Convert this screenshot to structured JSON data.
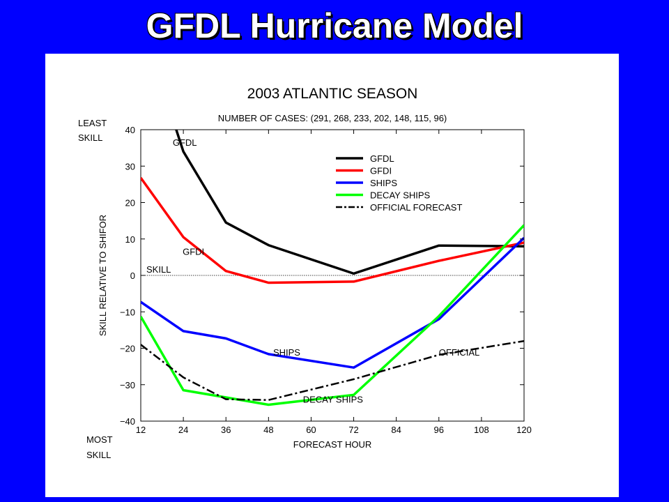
{
  "slide": {
    "title": "GFDL Hurricane Model"
  },
  "chart_data": {
    "type": "line",
    "title": "2003 ATLANTIC SEASON",
    "subtitle": "NUMBER OF CASES: (291, 268, 233, 202, 148, 115, 96)",
    "xlabel": "FORECAST HOUR",
    "ylabel": "SKILL RELATIVE TO SHIFOR",
    "xlim": [
      12,
      120
    ],
    "ylim": [
      -40,
      40
    ],
    "xticks": [
      12,
      24,
      36,
      48,
      60,
      72,
      84,
      96,
      108,
      120
    ],
    "yticks": [
      40,
      30,
      20,
      10,
      0,
      -10,
      -20,
      -30,
      -40
    ],
    "ytick_labels": [
      "40",
      "30",
      "20",
      "10",
      "0",
      "−10",
      "−20",
      "−30",
      "−40"
    ],
    "y_top_label": [
      "LEAST",
      "SKILL"
    ],
    "y_bottom_label": [
      "MOST",
      "SKILL"
    ],
    "reference_line": {
      "y": 0,
      "label": "SKILL"
    },
    "legend_position": "top-right",
    "series": [
      {
        "name": "GFDL",
        "color": "#000000",
        "dash": "solid",
        "x": [
          22,
          24,
          36,
          48,
          72,
          96,
          120
        ],
        "y": [
          40,
          34,
          14.5,
          8.3,
          0.5,
          8.2,
          8
        ]
      },
      {
        "name": "GFDI",
        "color": "#ff0000",
        "dash": "solid",
        "x": [
          12,
          24,
          36,
          48,
          72,
          96,
          120
        ],
        "y": [
          26.8,
          10.5,
          1.2,
          -2,
          -1.7,
          4,
          9
        ]
      },
      {
        "name": "SHIPS",
        "color": "#0000ff",
        "dash": "solid",
        "x": [
          12,
          24,
          36,
          48,
          72,
          96,
          120
        ],
        "y": [
          -7.3,
          -15.3,
          -17.3,
          -21.6,
          -25.3,
          -12,
          10.3
        ]
      },
      {
        "name": "DECAY SHIPS",
        "color": "#00ff00",
        "dash": "solid",
        "x": [
          12,
          24,
          36,
          48,
          72,
          96,
          120
        ],
        "y": [
          -11.3,
          -31.5,
          -33.5,
          -35.5,
          -32.8,
          -11.2,
          13.8
        ]
      },
      {
        "name": "OFFICIAL FORECAST",
        "color": "#000000",
        "dash": "dashdot",
        "x": [
          12,
          24,
          36,
          48,
          72,
          96,
          120
        ],
        "y": [
          -19,
          -28,
          -34,
          -34.2,
          -28.5,
          -21.8,
          -18
        ]
      }
    ],
    "annotations": [
      {
        "text": "GFDL",
        "x": 21,
        "y": 35.6
      },
      {
        "text": "GFDI",
        "x": 23.8,
        "y": 5.6
      },
      {
        "text": "SHIPS",
        "x": 49.3,
        "y": -22
      },
      {
        "text": "DECAY SHIPS",
        "x": 57.7,
        "y": -34.9
      },
      {
        "text": "OFFICIAL",
        "x": 96,
        "y": -22
      }
    ]
  }
}
